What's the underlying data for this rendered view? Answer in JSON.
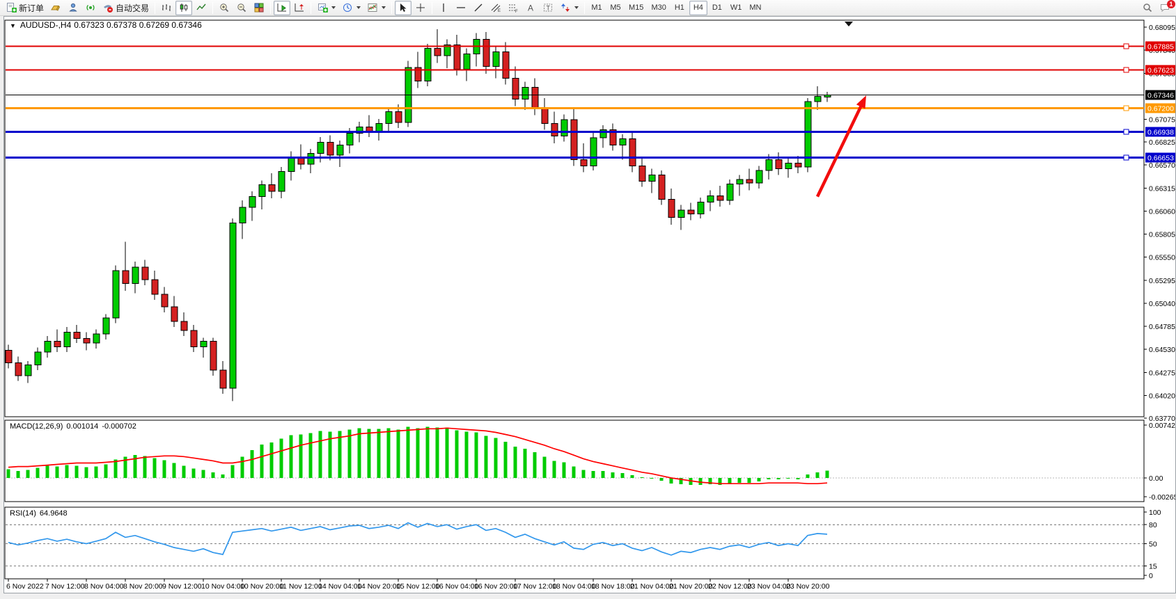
{
  "toolbar": {
    "new_order_label": "新订单",
    "autotrading_label": "自动交易",
    "timeframes": [
      "M1",
      "M5",
      "M15",
      "M30",
      "H1",
      "H4",
      "D1",
      "W1",
      "MN"
    ],
    "active_timeframe": "H4",
    "notification_badge": "1"
  },
  "chart_header": {
    "collapse_icon": "▼",
    "symbol_period": "AUDUSD-,H4",
    "ohlc": "0.67323 0.67378 0.67269 0.67346"
  },
  "indicators": {
    "macd": {
      "name": "MACD(12,26,9)",
      "value_main": "0.001014",
      "value_signal": "-0.000702"
    },
    "rsi": {
      "name": "RSI(14)",
      "value": "64.9648"
    }
  },
  "chart_data": [
    {
      "type": "candlestick",
      "symbol": "AUDUSD-",
      "period": "H4",
      "ohlc_current": {
        "open": 0.67323,
        "high": 0.67378,
        "low": 0.67269,
        "close": 0.67346
      },
      "ylim": [
        0.6377,
        0.68095
      ],
      "yticks": [
        "0.68095",
        "0.67840",
        "0.67585",
        "0.67075",
        "0.66825",
        "0.66570",
        "0.66315",
        "0.66060",
        "0.65805",
        "0.65550",
        "0.65295",
        "0.65040",
        "0.64785",
        "0.64530",
        "0.64275",
        "0.64020",
        "0.63770"
      ],
      "xticklabels": [
        "6 Nov 2022",
        "7 Nov 12:00",
        "8 Nov 04:00",
        "8 Nov 20:00",
        "9 Nov 12:00",
        "10 Nov 04:00",
        "10 Nov 20:00",
        "11 Nov 12:00",
        "14 Nov 04:00",
        "14 Nov 20:00",
        "15 Nov 12:00",
        "16 Nov 04:00",
        "16 Nov 20:00",
        "17 Nov 12:00",
        "18 Nov 04:00",
        "18 Nov 18:00",
        "21 Nov 04:00",
        "21 Nov 20:00",
        "22 Nov 12:00",
        "23 Nov 04:00",
        "23 Nov 20:00"
      ],
      "up_color": "#00cc00",
      "down_color": "#d42121",
      "levels": [
        {
          "price": 0.67885,
          "label": "0.67885",
          "color": "#e00000",
          "width": 2
        },
        {
          "price": 0.67623,
          "label": "0.67623",
          "color": "#e00000",
          "width": 2
        },
        {
          "price": 0.67346,
          "label": "0.67346",
          "color": "#000000",
          "width": 1
        },
        {
          "price": 0.672,
          "label": "0.67200",
          "color": "#ff9900",
          "width": 3
        },
        {
          "price": 0.66938,
          "label": "0.66938",
          "color": "#0000cc",
          "width": 3
        },
        {
          "price": 0.66653,
          "label": "0.66653",
          "color": "#0000cc",
          "width": 3
        }
      ],
      "arrow": {
        "color": "#f20d0d",
        "bar_start": 83,
        "price_start": 0.6622,
        "bar_end": 88,
        "price_end": 0.6734
      },
      "candles": [
        [
          0.6452,
          0.6458,
          0.6432,
          0.6438
        ],
        [
          0.6438,
          0.6445,
          0.6418,
          0.6424
        ],
        [
          0.6424,
          0.644,
          0.6416,
          0.6436
        ],
        [
          0.6436,
          0.6455,
          0.643,
          0.645
        ],
        [
          0.645,
          0.6468,
          0.6444,
          0.6462
        ],
        [
          0.6462,
          0.6475,
          0.645,
          0.6456
        ],
        [
          0.6456,
          0.6478,
          0.645,
          0.6472
        ],
        [
          0.6472,
          0.648,
          0.646,
          0.6465
        ],
        [
          0.6465,
          0.6472,
          0.6452,
          0.646
        ],
        [
          0.646,
          0.6475,
          0.6454,
          0.647
        ],
        [
          0.647,
          0.6492,
          0.6464,
          0.6488
        ],
        [
          0.6488,
          0.6546,
          0.6482,
          0.654
        ],
        [
          0.654,
          0.6572,
          0.6518,
          0.6526
        ],
        [
          0.6526,
          0.655,
          0.6515,
          0.6544
        ],
        [
          0.6544,
          0.6552,
          0.6524,
          0.653
        ],
        [
          0.653,
          0.654,
          0.6508,
          0.6514
        ],
        [
          0.6514,
          0.6522,
          0.6494,
          0.65
        ],
        [
          0.65,
          0.6512,
          0.6478,
          0.6484
        ],
        [
          0.6484,
          0.6494,
          0.6468,
          0.6474
        ],
        [
          0.6474,
          0.648,
          0.645,
          0.6456
        ],
        [
          0.6456,
          0.6466,
          0.6444,
          0.6462
        ],
        [
          0.6462,
          0.6466,
          0.6424,
          0.643
        ],
        [
          0.643,
          0.644,
          0.6404,
          0.641
        ],
        [
          0.641,
          0.6598,
          0.6396,
          0.6593
        ],
        [
          0.6593,
          0.6618,
          0.6575,
          0.661
        ],
        [
          0.661,
          0.6628,
          0.6595,
          0.6622
        ],
        [
          0.6622,
          0.664,
          0.6608,
          0.6635
        ],
        [
          0.6635,
          0.6648,
          0.662,
          0.6628
        ],
        [
          0.6628,
          0.6655,
          0.662,
          0.665
        ],
        [
          0.665,
          0.6672,
          0.664,
          0.6666
        ],
        [
          0.6666,
          0.668,
          0.6652,
          0.6658
        ],
        [
          0.6658,
          0.6675,
          0.6648,
          0.667
        ],
        [
          0.667,
          0.6688,
          0.666,
          0.6682
        ],
        [
          0.6682,
          0.669,
          0.6662,
          0.6668
        ],
        [
          0.6668,
          0.6684,
          0.6655,
          0.6679
        ],
        [
          0.6679,
          0.6698,
          0.667,
          0.6692
        ],
        [
          0.6692,
          0.6705,
          0.6682,
          0.6699
        ],
        [
          0.6699,
          0.6712,
          0.6688,
          0.6694
        ],
        [
          0.6694,
          0.6708,
          0.6684,
          0.6703
        ],
        [
          0.6703,
          0.6721,
          0.6695,
          0.6716
        ],
        [
          0.6716,
          0.6724,
          0.6698,
          0.6704
        ],
        [
          0.6704,
          0.6772,
          0.6699,
          0.6765
        ],
        [
          0.6765,
          0.6782,
          0.6742,
          0.675
        ],
        [
          0.675,
          0.6791,
          0.6744,
          0.6786
        ],
        [
          0.6786,
          0.6807,
          0.677,
          0.6778
        ],
        [
          0.6778,
          0.6796,
          0.6764,
          0.679
        ],
        [
          0.679,
          0.6801,
          0.6756,
          0.6763
        ],
        [
          0.6763,
          0.6786,
          0.675,
          0.678
        ],
        [
          0.678,
          0.6803,
          0.6766,
          0.6796
        ],
        [
          0.6796,
          0.6804,
          0.6758,
          0.6766
        ],
        [
          0.6766,
          0.6789,
          0.6753,
          0.6782
        ],
        [
          0.6782,
          0.6793,
          0.6746,
          0.6753
        ],
        [
          0.6753,
          0.6766,
          0.6722,
          0.673
        ],
        [
          0.673,
          0.6749,
          0.6718,
          0.6743
        ],
        [
          0.6743,
          0.6753,
          0.6712,
          0.6719
        ],
        [
          0.6719,
          0.6731,
          0.6696,
          0.6703
        ],
        [
          0.6703,
          0.6716,
          0.6681,
          0.6689
        ],
        [
          0.6689,
          0.6713,
          0.6683,
          0.6707
        ],
        [
          0.6707,
          0.6719,
          0.6656,
          0.6663
        ],
        [
          0.6663,
          0.6681,
          0.6649,
          0.6656
        ],
        [
          0.6656,
          0.6693,
          0.6651,
          0.6687
        ],
        [
          0.6687,
          0.6701,
          0.6676,
          0.6696
        ],
        [
          0.6696,
          0.6703,
          0.6673,
          0.6679
        ],
        [
          0.6679,
          0.6691,
          0.6663,
          0.6686
        ],
        [
          0.6686,
          0.6693,
          0.6649,
          0.6656
        ],
        [
          0.6656,
          0.6666,
          0.6633,
          0.6639
        ],
        [
          0.6639,
          0.6653,
          0.6626,
          0.6646
        ],
        [
          0.6646,
          0.6651,
          0.6613,
          0.6619
        ],
        [
          0.6619,
          0.6631,
          0.6591,
          0.6599
        ],
        [
          0.6599,
          0.6613,
          0.6585,
          0.6607
        ],
        [
          0.6607,
          0.6615,
          0.6596,
          0.6603
        ],
        [
          0.6603,
          0.6621,
          0.6598,
          0.6616
        ],
        [
          0.6616,
          0.6629,
          0.6606,
          0.6623
        ],
        [
          0.6623,
          0.6634,
          0.6611,
          0.6618
        ],
        [
          0.6618,
          0.6641,
          0.6613,
          0.6636
        ],
        [
          0.6636,
          0.6646,
          0.6623,
          0.6641
        ],
        [
          0.6641,
          0.6653,
          0.6629,
          0.6637
        ],
        [
          0.6637,
          0.6656,
          0.6631,
          0.6651
        ],
        [
          0.6651,
          0.6669,
          0.6641,
          0.6663
        ],
        [
          0.6663,
          0.6671,
          0.6646,
          0.6653
        ],
        [
          0.6653,
          0.6664,
          0.6643,
          0.6659
        ],
        [
          0.6659,
          0.6667,
          0.6648,
          0.6655
        ],
        [
          0.6655,
          0.6731,
          0.6649,
          0.6727
        ],
        [
          0.6727,
          0.6744,
          0.6718,
          0.6733
        ],
        [
          0.67323,
          0.67378,
          0.67269,
          0.67346
        ]
      ]
    },
    {
      "type": "bar",
      "name": "MACD(12,26,9)",
      "yticks": [
        "0.007422",
        "0.00",
        "-0.002651"
      ],
      "ytick_values": [
        0.007422,
        0,
        -0.002651
      ],
      "histogram_color": "#00cc00",
      "signal_color": "#ff0000",
      "values": [
        0.0012,
        0.001,
        0.0011,
        0.0014,
        0.0017,
        0.0016,
        0.0018,
        0.0017,
        0.0015,
        0.0016,
        0.0019,
        0.0026,
        0.003,
        0.0032,
        0.0031,
        0.0028,
        0.0025,
        0.0021,
        0.0017,
        0.0013,
        0.0011,
        0.0008,
        0.0005,
        0.0018,
        0.003,
        0.0039,
        0.0047,
        0.005,
        0.0055,
        0.006,
        0.0061,
        0.0063,
        0.0066,
        0.0065,
        0.0066,
        0.0068,
        0.007,
        0.0069,
        0.0069,
        0.007,
        0.0068,
        0.0072,
        0.007,
        0.0072,
        0.0071,
        0.0071,
        0.0067,
        0.0065,
        0.0064,
        0.0059,
        0.0056,
        0.0051,
        0.0044,
        0.0041,
        0.0036,
        0.003,
        0.0024,
        0.0022,
        0.0016,
        0.0011,
        0.001,
        0.001,
        0.0008,
        0.0007,
        0.0004,
        0.0001,
        0.0,
        -0.0004,
        -0.0008,
        -0.0009,
        -0.001,
        -0.001,
        -0.0009,
        -0.001,
        -0.0008,
        -0.0007,
        -0.0007,
        -0.0005,
        -0.0002,
        -0.0002,
        -0.0001,
        -0.0002,
        0.0005,
        0.0008,
        0.001014
      ],
      "signal": [
        0.0015,
        0.0016,
        0.0016,
        0.0017,
        0.0018,
        0.0019,
        0.002,
        0.0021,
        0.0021,
        0.0021,
        0.0022,
        0.0023,
        0.0025,
        0.0027,
        0.0029,
        0.003,
        0.0031,
        0.0031,
        0.003,
        0.0028,
        0.0026,
        0.0024,
        0.0021,
        0.0021,
        0.0023,
        0.0026,
        0.003,
        0.0034,
        0.0038,
        0.0042,
        0.0046,
        0.0049,
        0.0052,
        0.0055,
        0.0057,
        0.0059,
        0.0062,
        0.0063,
        0.0064,
        0.0065,
        0.0066,
        0.0067,
        0.0068,
        0.0069,
        0.0069,
        0.007,
        0.0069,
        0.0068,
        0.0067,
        0.0066,
        0.0064,
        0.0061,
        0.0058,
        0.0054,
        0.005,
        0.0046,
        0.0041,
        0.0037,
        0.0032,
        0.0027,
        0.0023,
        0.002,
        0.0017,
        0.0014,
        0.0011,
        0.0008,
        0.0006,
        0.0003,
        0.0,
        -0.0002,
        -0.0004,
        -0.0006,
        -0.0007,
        -0.0008,
        -0.0008,
        -0.0008,
        -0.0008,
        -0.0008,
        -0.0007,
        -0.0007,
        -0.0007,
        -0.0007,
        -0.0008,
        -0.0008,
        -0.000702
      ]
    },
    {
      "type": "line",
      "name": "RSI(14)",
      "ylim": [
        0,
        100
      ],
      "yticks": [
        100,
        80,
        50,
        15,
        0
      ],
      "level_lines": [
        80,
        50,
        15
      ],
      "line_color": "#3197ec",
      "values": [
        52,
        48,
        51,
        55,
        58,
        54,
        57,
        53,
        50,
        54,
        58,
        68,
        60,
        63,
        58,
        53,
        49,
        44,
        41,
        38,
        42,
        36,
        33,
        68,
        70,
        72,
        74,
        70,
        73,
        76,
        71,
        74,
        77,
        72,
        75,
        78,
        79,
        74,
        76,
        79,
        74,
        83,
        76,
        82,
        77,
        80,
        73,
        77,
        80,
        71,
        74,
        68,
        60,
        65,
        58,
        53,
        48,
        53,
        43,
        41,
        49,
        52,
        47,
        50,
        43,
        39,
        44,
        37,
        32,
        38,
        36,
        41,
        44,
        41,
        46,
        48,
        44,
        49,
        52,
        47,
        50,
        47,
        63,
        66,
        64.96
      ]
    }
  ]
}
